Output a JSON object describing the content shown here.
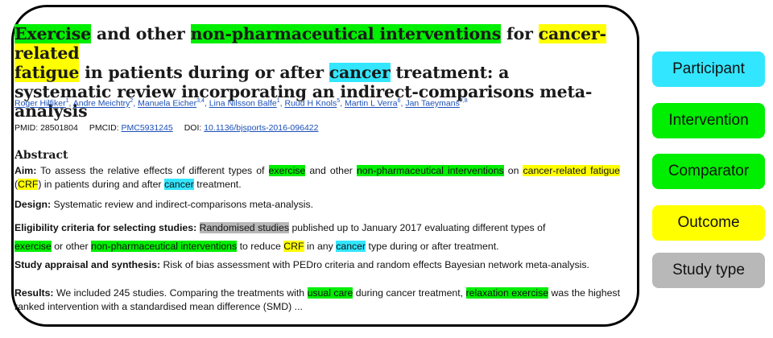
{
  "paper": {
    "title": {
      "t1": "Exercise",
      "t2": " and other ",
      "t3": "non-pharmaceutical interventions",
      "t4": " for ",
      "t5": "cancer-related",
      "t6": " ",
      "t7": "fatigue",
      "t8": " in patients during or after ",
      "t9": "cancer",
      "t10": " treatment: a systematic review incorporating an indirect-comparisons meta-analysis"
    },
    "authors": [
      {
        "name": "Roger Hilfiker",
        "sup": "1"
      },
      {
        "name": "Andre Meichtry",
        "sup": "2"
      },
      {
        "name": "Manuela Eicher",
        "sup": "3,4"
      },
      {
        "name": "Lina Nilsson Balfe",
        "sup": "1"
      },
      {
        "name": "Ruud H Knols",
        "sup": "5"
      },
      {
        "name": "Martin L Verra",
        "sup": "6"
      },
      {
        "name": "Jan Taeymans",
        "sup": "7,8"
      }
    ],
    "ids": {
      "pmid_label": "PMID: 28501804",
      "pmcid_label": "PMCID:",
      "pmcid_value": "PMC5931245",
      "doi_label": "DOI:",
      "doi_value": "10.1136/bjsports-2016-096422"
    },
    "abstract_heading": "Abstract",
    "aim": {
      "label": "Aim:",
      "s1": " To assess the relative effects of different types of ",
      "s2": "exercise",
      "s3": " and other ",
      "s4": "non-pharmaceutical interventions",
      "s5": " on ",
      "s6": "cancer-related fatigue",
      "s7": " (",
      "s8": "CRF",
      "s9": ") in patients during and after ",
      "s10": "cancer",
      "s11": " treatment."
    },
    "design": {
      "label": "Design:",
      "text": " Systematic review and indirect-comparisons meta-analysis."
    },
    "eligibility": {
      "label": "Eligibility criteria for selecting studies:",
      "s1": "Randomised studies",
      "s2": " published up to January 2017 evaluating different types of",
      "s3": "exercise",
      "s4": " or other ",
      "s5": "non-pharmaceutical interventions",
      "s6": " to reduce ",
      "s7": "CRF",
      "s8": " in any ",
      "s9": "cancer",
      "s10": " type during or after treatment."
    },
    "appraisal": {
      "label": "Study appraisal and synthesis:",
      "text": " Risk of bias assessment with PEDro criteria and random effects Bayesian network meta-analysis."
    },
    "results": {
      "label": "Results:",
      "s1": " We included 245 studies. Comparing the treatments with ",
      "s2": "usual care",
      "s3": " during cancer treatment, ",
      "s4": "relaxation exercise",
      "s5": " was the highest ranked intervention with a standardised mean difference (SMD) ..."
    }
  },
  "legend": [
    {
      "label": "Participant",
      "color": "#33e6ff"
    },
    {
      "label": "Intervention",
      "color": "#00ee00"
    },
    {
      "label": "Comparator",
      "color": "#00ee00"
    },
    {
      "label": "Outcome",
      "color": "#ffff00"
    },
    {
      "label": "Study type",
      "color": "#b8b8b8"
    }
  ]
}
